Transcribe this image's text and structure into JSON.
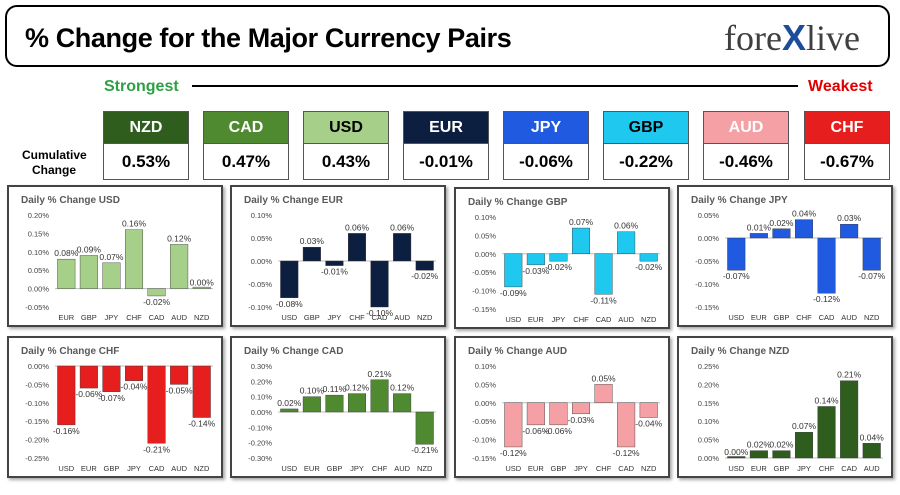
{
  "header": {
    "title": "% Change for the Major Currency Pairs",
    "brand_left": "fore",
    "brand_x": "X",
    "brand_right": "live"
  },
  "strongest_label": "Strongest",
  "weakest_label": "Weakest",
  "cumulative_label": "Cumulative Change",
  "currencies": [
    {
      "code": "NZD",
      "value": "0.53%",
      "color": "#2e5d1e"
    },
    {
      "code": "CAD",
      "value": "0.47%",
      "color": "#4f8a31"
    },
    {
      "code": "USD",
      "value": "0.43%",
      "color": "#a6d08a"
    },
    {
      "code": "EUR",
      "value": "-0.01%",
      "color": "#0d1f40"
    },
    {
      "code": "JPY",
      "value": "-0.06%",
      "color": "#1f5ae0"
    },
    {
      "code": "GBP",
      "value": "-0.22%",
      "color": "#1ec8ef"
    },
    {
      "code": "AUD",
      "value": "-0.46%",
      "color": "#f5a0a5"
    },
    {
      "code": "CHF",
      "value": "-0.67%",
      "color": "#e61e1e"
    }
  ],
  "chart_data": [
    {
      "type": "bar",
      "title": "Daily % Change USD",
      "color": "#a6d08a",
      "categories": [
        "EUR",
        "GBP",
        "JPY",
        "CHF",
        "CAD",
        "AUD",
        "NZD"
      ],
      "values": [
        0.08,
        0.09,
        0.07,
        0.16,
        -0.02,
        0.12,
        0.0
      ],
      "labels": [
        "0.08%",
        "0.09%",
        "0.07%",
        "0.16%",
        "-0.02%",
        "0.12%",
        "0.00%"
      ],
      "ylim": [
        -0.05,
        0.2
      ],
      "ticks": [
        -0.05,
        0,
        0.05,
        0.1,
        0.15,
        0.2
      ],
      "tick_labels": [
        "-0.05%",
        "0.00%",
        "0.05%",
        "0.10%",
        "0.15%",
        "0.20%"
      ]
    },
    {
      "type": "bar",
      "title": "Daily % Change EUR",
      "color": "#0d1f40",
      "categories": [
        "USD",
        "GBP",
        "JPY",
        "CHF",
        "CAD",
        "AUD",
        "NZD"
      ],
      "values": [
        -0.08,
        0.03,
        -0.01,
        0.06,
        -0.1,
        0.06,
        -0.02
      ],
      "labels": [
        "-0.08%",
        "0.03%",
        "-0.01%",
        "0.06%",
        "-0.10%",
        "0.06%",
        "-0.02%"
      ],
      "ylim": [
        -0.1,
        0.1
      ],
      "ticks": [
        -0.1,
        -0.05,
        0,
        0.05,
        0.1
      ],
      "tick_labels": [
        "-0.10%",
        "-0.05%",
        "0.00%",
        "0.05%",
        "0.10%"
      ]
    },
    {
      "type": "bar",
      "title": "Daily % Change GBP",
      "color": "#1ec8ef",
      "categories": [
        "USD",
        "EUR",
        "JPY",
        "CHF",
        "CAD",
        "AUD",
        "NZD"
      ],
      "values": [
        -0.09,
        -0.03,
        -0.02,
        0.07,
        -0.11,
        0.06,
        -0.02
      ],
      "labels": [
        "-0.09%",
        "-0.03%",
        "-0.02%",
        "0.07%",
        "-0.11%",
        "0.06%",
        "-0.02%"
      ],
      "ylim": [
        -0.15,
        0.1
      ],
      "ticks": [
        -0.15,
        -0.1,
        -0.05,
        0,
        0.05,
        0.1
      ],
      "tick_labels": [
        "-0.15%",
        "-0.10%",
        "-0.05%",
        "0.00%",
        "0.05%",
        "0.10%"
      ]
    },
    {
      "type": "bar",
      "title": "Daily % Change JPY",
      "color": "#1f5ae0",
      "categories": [
        "USD",
        "EUR",
        "GBP",
        "CHF",
        "CAD",
        "AUD",
        "NZD"
      ],
      "values": [
        -0.07,
        0.01,
        0.02,
        0.04,
        -0.12,
        0.03,
        -0.07
      ],
      "labels": [
        "-0.07%",
        "0.01%",
        "0.02%",
        "0.04%",
        "-0.12%",
        "0.03%",
        "-0.07%"
      ],
      "ylim": [
        -0.15,
        0.05
      ],
      "ticks": [
        -0.15,
        -0.1,
        -0.05,
        0,
        0.05
      ],
      "tick_labels": [
        "-0.15%",
        "-0.10%",
        "-0.05%",
        "0.00%",
        "0.05%"
      ]
    },
    {
      "type": "bar",
      "title": "Daily % Change CHF",
      "color": "#e61e1e",
      "categories": [
        "USD",
        "EUR",
        "GBP",
        "JPY",
        "CAD",
        "AUD",
        "NZD"
      ],
      "values": [
        -0.16,
        -0.06,
        -0.07,
        -0.04,
        -0.21,
        -0.05,
        -0.14
      ],
      "labels": [
        "-0.16%",
        "-0.06%",
        "-0.07%",
        "-0.04%",
        "-0.21%",
        "-0.05%",
        "-0.14%"
      ],
      "ylim": [
        -0.25,
        0
      ],
      "ticks": [
        -0.25,
        -0.2,
        -0.15,
        -0.1,
        -0.05,
        0
      ],
      "tick_labels": [
        "-0.25%",
        "-0.20%",
        "-0.15%",
        "-0.10%",
        "-0.05%",
        "0.00%"
      ]
    },
    {
      "type": "bar",
      "title": "Daily % Change CAD",
      "color": "#4f8a31",
      "categories": [
        "USD",
        "EUR",
        "GBP",
        "JPY",
        "CHF",
        "AUD",
        "NZD"
      ],
      "values": [
        0.02,
        0.1,
        0.11,
        0.12,
        0.21,
        0.12,
        -0.21
      ],
      "labels": [
        "0.02%",
        "0.10%",
        "0.11%",
        "0.12%",
        "0.21%",
        "0.12%",
        "-0.21%"
      ],
      "ylim": [
        -0.3,
        0.3
      ],
      "ticks": [
        -0.3,
        -0.2,
        -0.1,
        0,
        0.1,
        0.2,
        0.3
      ],
      "tick_labels": [
        "-0.30%",
        "-0.20%",
        "-0.10%",
        "0.00%",
        "0.10%",
        "0.20%",
        "0.30%"
      ]
    },
    {
      "type": "bar",
      "title": "Daily % Change AUD",
      "color": "#f5a0a5",
      "categories": [
        "USD",
        "EUR",
        "GBP",
        "JPY",
        "CHF",
        "CAD",
        "NZD"
      ],
      "values": [
        -0.12,
        -0.06,
        -0.06,
        -0.03,
        0.05,
        -0.12,
        -0.04
      ],
      "labels": [
        "-0.12%",
        "-0.06%",
        "-0.06%",
        "-0.03%",
        "0.05%",
        "-0.12%",
        "-0.04%"
      ],
      "ylim": [
        -0.15,
        0.1
      ],
      "ticks": [
        -0.15,
        -0.1,
        -0.05,
        0,
        0.05,
        0.1
      ],
      "tick_labels": [
        "-0.15%",
        "-0.10%",
        "-0.05%",
        "0.00%",
        "0.05%",
        "0.10%"
      ]
    },
    {
      "type": "bar",
      "title": "Daily % Change NZD",
      "color": "#2e5d1e",
      "categories": [
        "USD",
        "EUR",
        "GBP",
        "JPY",
        "CHF",
        "CAD",
        "AUD"
      ],
      "values": [
        0.0,
        0.02,
        0.02,
        0.07,
        0.14,
        0.21,
        0.04
      ],
      "labels": [
        "0.00%",
        "0.02%",
        "0.02%",
        "0.07%",
        "0.14%",
        "0.21%",
        "0.04%"
      ],
      "ylim": [
        0,
        0.25
      ],
      "ticks": [
        0,
        0.05,
        0.1,
        0.15,
        0.2,
        0.25
      ],
      "tick_labels": [
        "0.00%",
        "0.05%",
        "0.10%",
        "0.15%",
        "0.20%",
        "0.25%"
      ]
    }
  ]
}
